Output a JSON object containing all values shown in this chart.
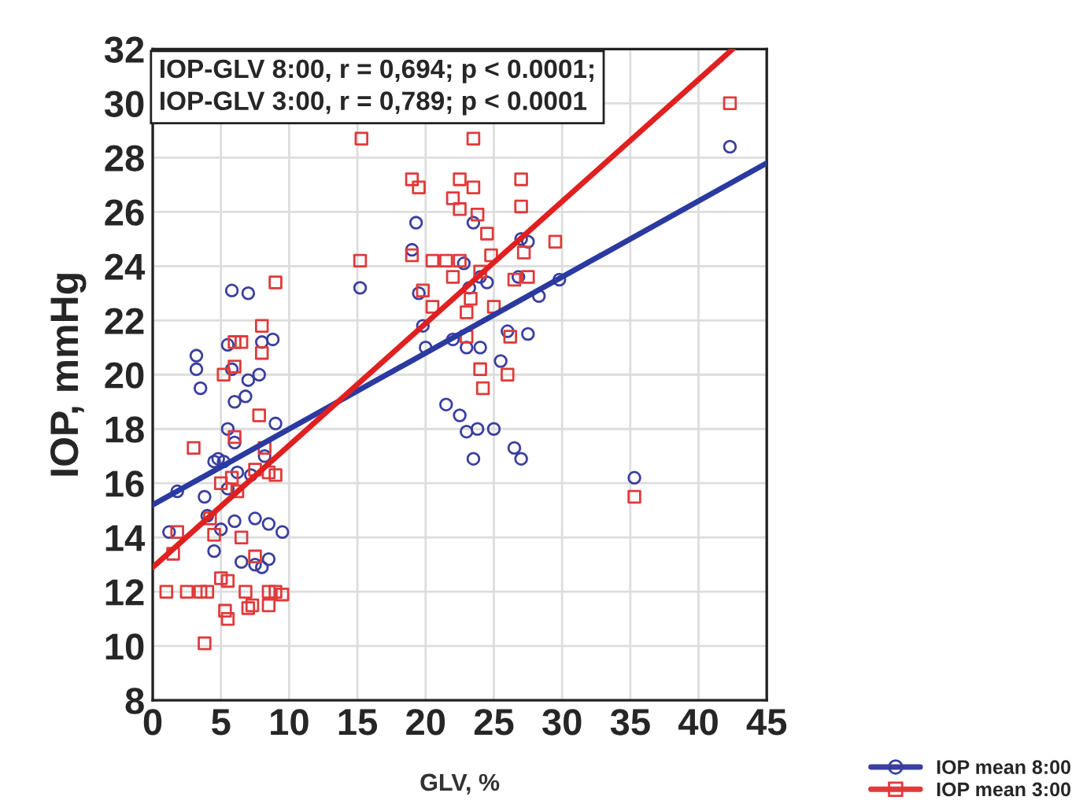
{
  "chart_data": {
    "type": "scatter",
    "xlabel": "GLV, %",
    "ylabel": "IOP, mmHg",
    "annotations": [
      "IOP-GLV 8:00, r = 0,694; p < 0.0001;\nIOP-GLV 3:00, r = 0,789; p < 0.0001"
    ],
    "xlim": [
      0,
      45
    ],
    "ylim": [
      8,
      32
    ],
    "xticks": [
      0,
      5,
      10,
      15,
      20,
      25,
      30,
      35,
      40,
      45
    ],
    "yticks": [
      8,
      10,
      12,
      14,
      16,
      18,
      20,
      22,
      24,
      26,
      28,
      30,
      32
    ],
    "grid": true,
    "legend": "bottom right",
    "series": [
      {
        "name": "IOP mean 8:00",
        "color": "#3a3f9e",
        "marker": "circle",
        "x": [
          1.2,
          1.8,
          3.2,
          3.2,
          3.5,
          4,
          4.5,
          5.2,
          5.5,
          5.8,
          5.5,
          5.8,
          6,
          6,
          6.2,
          6.5,
          7,
          7,
          7.2,
          7.5,
          8,
          8.2,
          8.5,
          8.5,
          8.8,
          9,
          9.5,
          3.8,
          4.5,
          5,
          6,
          7.5,
          8,
          6.8,
          5.5,
          4.8,
          7.8,
          19.3,
          19,
          19.5,
          19.8,
          20,
          21.5,
          22,
          22.5,
          23,
          23,
          23.2,
          23.5,
          23.5,
          23.8,
          24,
          24,
          24.5,
          25,
          25.5,
          26,
          26.5,
          26.8,
          27,
          27,
          27.5,
          28.3,
          27.5,
          15.2,
          22.8,
          29.8,
          35.3,
          42.3
        ],
        "values": [
          14.2,
          15.7,
          20.7,
          20.2,
          19.5,
          14.8,
          13.5,
          16.8,
          15.8,
          23.1,
          21.1,
          20.2,
          19,
          17.5,
          16.4,
          13.1,
          23,
          19.8,
          16.3,
          14.7,
          21.2,
          17,
          14.5,
          13.2,
          21.3,
          18.2,
          14.2,
          15.5,
          16.8,
          14.3,
          14.6,
          13,
          12.9,
          19.2,
          18,
          16.9,
          20,
          25.6,
          24.6,
          23,
          21.8,
          21,
          18.9,
          21.3,
          18.5,
          17.9,
          21,
          23.2,
          25.6,
          16.9,
          18,
          21,
          23.6,
          23.4,
          18,
          20.5,
          21.6,
          17.3,
          23.6,
          16.9,
          25,
          24.9,
          22.9,
          21.5,
          23.2,
          24.1,
          23.5,
          16.2,
          28.4
        ]
      },
      {
        "name": "IOP mean 3:00",
        "color": "#e03a3a",
        "marker": "square",
        "x": [
          1,
          1.5,
          1.8,
          3,
          2.5,
          3.5,
          4,
          3.8,
          4.5,
          5,
          5.3,
          5.5,
          5.5,
          5.8,
          6,
          6,
          6,
          6.5,
          6.5,
          6.8,
          7,
          7.3,
          7.5,
          7.8,
          8,
          8,
          8.2,
          8.5,
          8.5,
          9,
          9,
          9,
          4.2,
          5,
          6.2,
          7.5,
          8.5,
          9.5,
          5.2,
          15.3,
          15.2,
          19,
          19.5,
          19,
          19.8,
          20.5,
          20.5,
          21.5,
          22,
          22.5,
          22.5,
          23,
          23,
          23.5,
          23.5,
          23.8,
          24,
          24,
          24.2,
          24.5,
          24.8,
          25,
          26,
          26.2,
          27,
          27,
          27.2,
          27.5,
          26.5,
          29.5,
          22,
          23.3,
          22.5,
          35.3,
          42.3
        ],
        "values": [
          12,
          13.4,
          14.2,
          17.3,
          12,
          12,
          12,
          10.1,
          14.1,
          12.5,
          11.3,
          11,
          12.4,
          16.2,
          17.7,
          20.3,
          21.2,
          21.2,
          14,
          12,
          11.4,
          11.5,
          13.3,
          18.5,
          21.8,
          20.8,
          17.3,
          16.4,
          11.5,
          12,
          16.3,
          23.4,
          14.7,
          16,
          15.7,
          16.5,
          12,
          11.9,
          20,
          28.7,
          24.2,
          27.2,
          26.9,
          24.4,
          23.1,
          24.2,
          22.5,
          24.2,
          26.5,
          27.2,
          24.2,
          22.3,
          21.4,
          28.7,
          26.9,
          25.9,
          23.8,
          20.2,
          19.5,
          25.2,
          24.4,
          22.5,
          20,
          21.4,
          27.2,
          26.2,
          24.5,
          23.6,
          23.5,
          24.9,
          23.6,
          22.8,
          26.1,
          15.5,
          30
        ]
      },
      {
        "type": "line",
        "color": "#2b3aa0",
        "marker": "none",
        "x": [
          0,
          45
        ],
        "values": [
          15.2,
          27.8
        ]
      },
      {
        "type": "line",
        "color": "#e02020",
        "marker": "none",
        "x": [
          0,
          42.5
        ],
        "values": [
          12.9,
          32
        ]
      }
    ]
  }
}
